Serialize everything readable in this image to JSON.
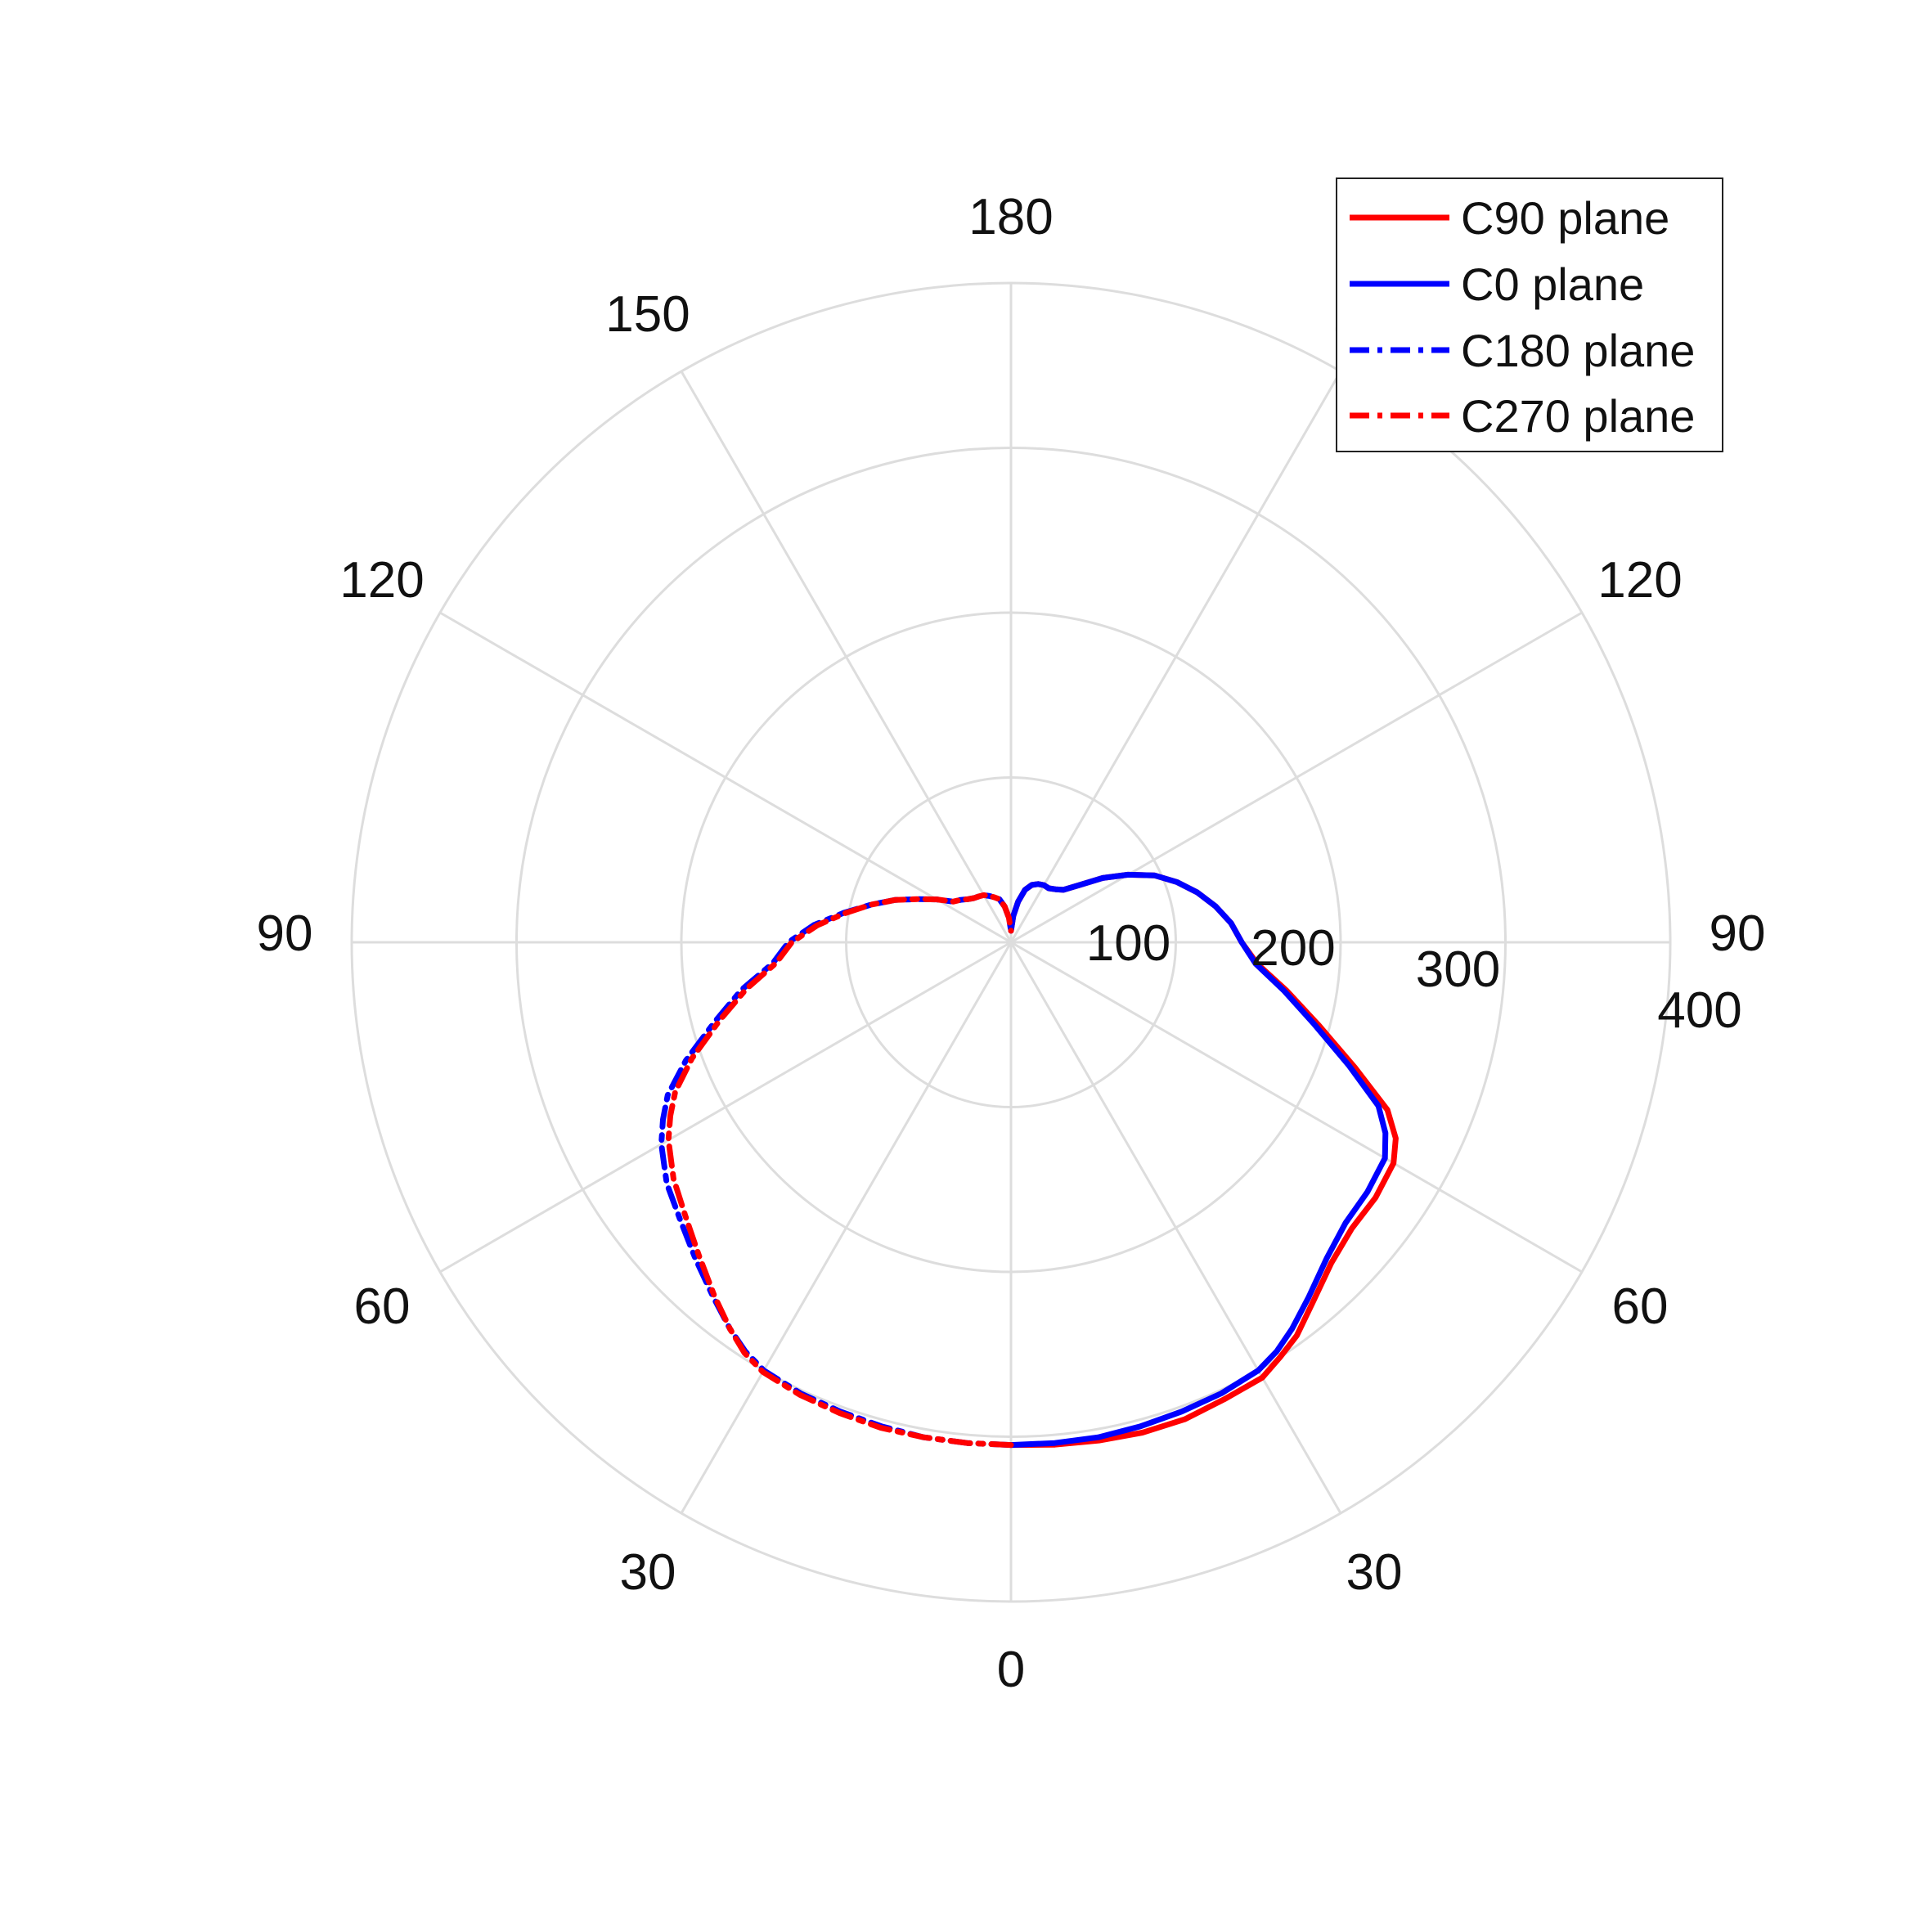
{
  "chart_data": {
    "type": "polar-line",
    "title": "",
    "angle_unit": "degrees",
    "angle_zero_position": "bottom",
    "radial_range": [
      0,
      400
    ],
    "radial_ticks": [
      "100",
      "200",
      "300",
      "400"
    ],
    "right_angle_ticks": [
      "0",
      "30",
      "60",
      "90",
      "120",
      "150",
      "180"
    ],
    "left_angle_ticks": [
      "0",
      "30",
      "60",
      "90",
      "120",
      "150",
      "180"
    ],
    "grid": true,
    "legend_position": "top-right",
    "colors": {
      "red": "#ff0000",
      "blue": "#0000ff",
      "grid": "#dddddd"
    },
    "series": [
      {
        "name": "C90 plane",
        "side": "right",
        "line_style": "solid",
        "color": "#ff0000",
        "angles": [
          0,
          5,
          10,
          15,
          20,
          25,
          30,
          33,
          36,
          40,
          45,
          50,
          55,
          60,
          63,
          66,
          70,
          75,
          80,
          85,
          90,
          95,
          100,
          105,
          110,
          115,
          120,
          125,
          130,
          135,
          140,
          145,
          150,
          155,
          160,
          165,
          170,
          175,
          180
        ],
        "values": [
          305,
          306,
          307,
          308,
          308,
          306,
          305,
          300,
          295,
          285,
          275,
          270,
          270,
          268,
          262,
          250,
          222,
          193,
          170,
          150,
          140,
          134,
          126,
          117,
          107,
          96,
          82,
          68,
          54,
          45,
          42,
          40,
          40,
          39,
          37,
          33,
          25,
          16,
          7
        ]
      },
      {
        "name": "C0 plane",
        "side": "right",
        "line_style": "solid",
        "color": "#0000ff",
        "angles": [
          0,
          5,
          10,
          15,
          20,
          25,
          30,
          33,
          36,
          40,
          45,
          50,
          55,
          60,
          63,
          66,
          70,
          75,
          80,
          85,
          90,
          95,
          100,
          105,
          110,
          115,
          120,
          125,
          130,
          135,
          140,
          145,
          150,
          155,
          160,
          165,
          170,
          175,
          180
        ],
        "values": [
          305,
          305,
          305,
          304,
          303,
          302,
          300,
          296,
          290,
          281,
          271,
          265,
          264,
          262,
          255,
          244,
          218,
          190,
          168,
          149,
          140,
          134,
          126,
          117,
          107,
          96,
          82,
          68,
          54,
          45,
          42,
          40,
          40,
          39,
          37,
          33,
          25,
          16,
          7
        ]
      },
      {
        "name": "C180 plane",
        "side": "left",
        "line_style": "dashdot",
        "color": "#0000ff",
        "angles": [
          0,
          5,
          10,
          15,
          20,
          25,
          30,
          33,
          36,
          40,
          45,
          50,
          55,
          60,
          63,
          66,
          70,
          75,
          80,
          85,
          90,
          95,
          100,
          105,
          110,
          115,
          120,
          125,
          130,
          135,
          140,
          145,
          150,
          155,
          160,
          165,
          170,
          175,
          180
        ],
        "values": [
          305,
          305,
          305,
          304,
          303,
          302,
          300,
          296,
          290,
          281,
          271,
          262,
          255,
          245,
          237,
          228,
          210,
          186,
          166,
          145,
          135,
          120,
          103,
          88,
          75,
          62,
          52,
          43,
          40,
          37,
          35,
          34,
          33,
          31,
          29,
          27,
          22,
          15,
          7
        ]
      },
      {
        "name": "C270 plane",
        "side": "left",
        "line_style": "dashdot",
        "color": "#ff0000",
        "angles": [
          0,
          5,
          10,
          15,
          20,
          25,
          30,
          33,
          36,
          40,
          45,
          50,
          55,
          60,
          63,
          66,
          70,
          75,
          80,
          85,
          90,
          95,
          100,
          105,
          110,
          115,
          120,
          125,
          130,
          135,
          140,
          145,
          150,
          155,
          160,
          165,
          170,
          175,
          180
        ],
        "values": [
          305,
          305,
          305,
          305,
          304,
          303,
          301,
          297,
          290,
          280,
          268,
          258,
          250,
          240,
          232,
          223,
          206,
          183,
          163,
          143,
          133,
          118,
          102,
          88,
          75,
          62,
          52,
          43,
          40,
          37,
          35,
          34,
          33,
          31,
          29,
          27,
          22,
          15,
          7
        ]
      }
    ]
  }
}
